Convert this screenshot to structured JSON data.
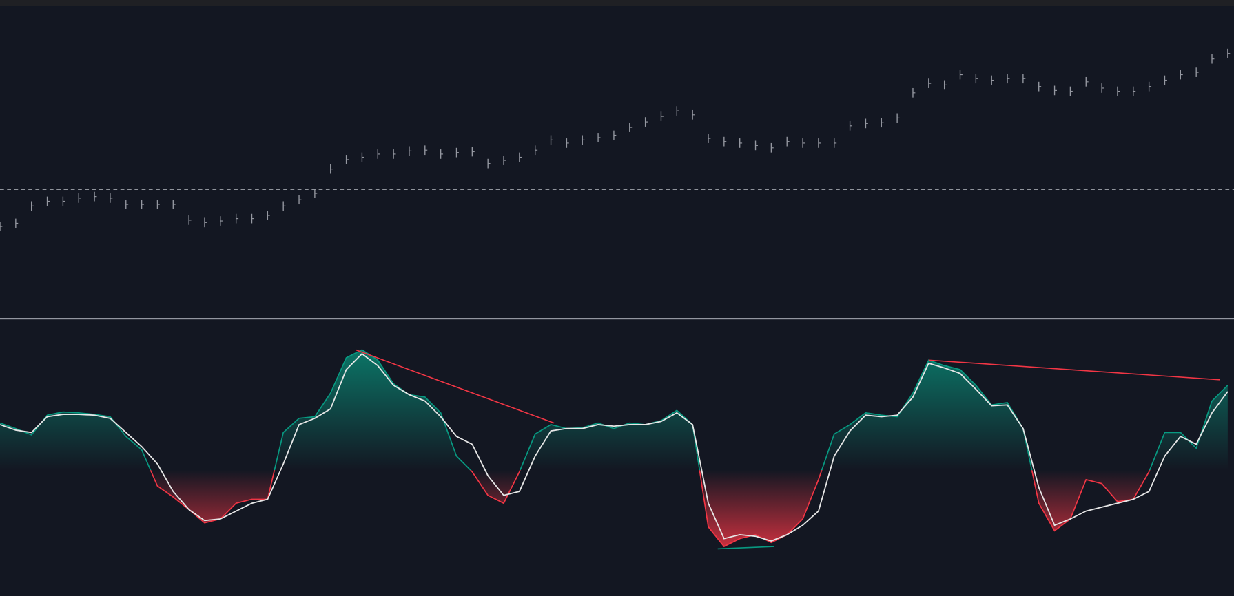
{
  "chart_data": [
    {
      "type": "tick",
      "color": "#9598a1",
      "values": [
        117,
        121,
        143,
        149,
        149,
        153,
        155,
        153,
        145,
        145,
        145,
        145,
        125,
        122,
        124,
        127,
        127,
        131,
        143,
        151,
        159,
        190,
        202,
        205,
        209,
        209,
        213,
        214,
        209,
        211,
        212,
        197,
        201,
        205,
        214,
        227,
        223,
        227,
        230,
        233,
        243,
        250,
        257,
        264,
        259,
        229,
        225,
        223,
        220,
        217,
        225,
        223,
        223,
        223,
        245,
        248,
        249,
        255,
        287,
        299,
        297,
        310,
        305,
        303,
        305,
        305,
        295,
        290,
        289,
        301,
        293,
        289,
        289,
        295,
        303,
        310,
        313,
        330,
        337
      ],
      "ylim": [
        0,
        397
      ],
      "xlim": [
        0,
        78
      ],
      "reference_line": 164,
      "reference_color": "#c8cbd2"
    },
    {
      "type": "oscillator",
      "ylim": [
        -160,
        193
      ],
      "xlim": [
        0,
        78
      ],
      "up_color": "#089981",
      "down_color": "#f23645",
      "series": [
        {
          "color": "#089981",
          "values": [
            60,
            53,
            45,
            70,
            74,
            73,
            71,
            68,
            43,
            26,
            -20,
            -34,
            -50,
            -67,
            -62,
            -42,
            -37,
            -37,
            48,
            66,
            68,
            98,
            143,
            153,
            140,
            110,
            96,
            93,
            73,
            18,
            -2,
            -32,
            -42,
            -2,
            46,
            58,
            53,
            54,
            60,
            53,
            60,
            58,
            63,
            76,
            58,
            -72,
            -97,
            -87,
            -82,
            -92,
            -82,
            -62,
            -12,
            46,
            58,
            73,
            70,
            68,
            98,
            140,
            133,
            128,
            108,
            83,
            86,
            53,
            -42,
            -77,
            -62,
            -12,
            -17,
            -40,
            -37,
            -2,
            48,
            48,
            28,
            88,
            108
          ]
        },
        {
          "color": "#e6e6e6",
          "values": [
            58,
            51,
            48,
            68,
            71,
            71,
            70,
            66,
            48,
            30,
            8,
            -27,
            -50,
            -64,
            -62,
            -52,
            -42,
            -37,
            8,
            58,
            66,
            78,
            128,
            148,
            133,
            108,
            96,
            88,
            68,
            43,
            33,
            -7,
            -32,
            -27,
            18,
            50,
            53,
            53,
            58,
            56,
            58,
            58,
            62,
            73,
            58,
            -42,
            -87,
            -82,
            -84,
            -90,
            -82,
            -70,
            -52,
            18,
            50,
            70,
            68,
            70,
            93,
            136,
            130,
            123,
            103,
            82,
            83,
            53,
            -22,
            -70,
            -62,
            -52,
            -47,
            -42,
            -37,
            -27,
            18,
            43,
            33,
            73,
            100
          ]
        }
      ],
      "divergences": [
        {
          "color": "#f23645",
          "x": [
            22.6,
            35.2
          ],
          "values": [
            153,
            60
          ]
        },
        {
          "color": "#f23645",
          "x": [
            59,
            77.5
          ],
          "values": [
            140,
            115
          ]
        },
        {
          "color": "#089981",
          "x": [
            45.6,
            49.2
          ],
          "values": [
            -100,
            -97
          ]
        }
      ]
    }
  ]
}
